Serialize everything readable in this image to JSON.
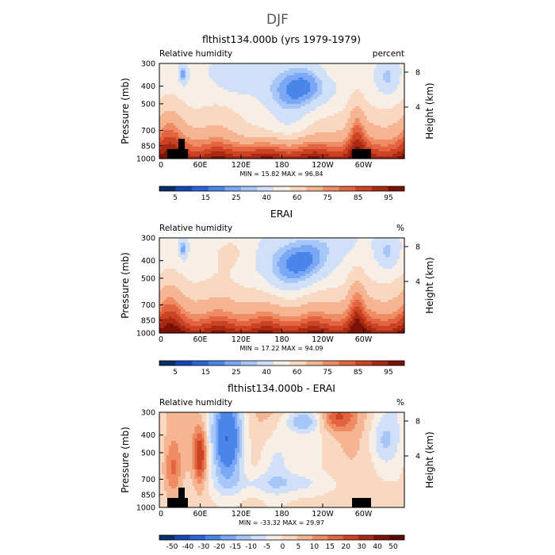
{
  "figure_title": "DJF",
  "chart_data": [
    {
      "type": "heatmap",
      "title": "flthist134.000b (yrs 1979-1979)",
      "left_label": "Relative humidity",
      "right_label": "percent",
      "ylabel": "Pressure (mb)",
      "y2label": "Height (km)",
      "xticks": [
        "0",
        "60E",
        "120E",
        "180",
        "120W",
        "60W"
      ],
      "yticks": [
        "300",
        "400",
        "500",
        "700",
        "850",
        "1000"
      ],
      "y2ticks": [
        "8",
        "4"
      ],
      "stats": "MIN =   15.82   MAX =   96.84",
      "min": 15.82,
      "max": 96.84,
      "colorbar_labels": [
        "5",
        "15",
        "25",
        "40",
        "60",
        "75",
        "85",
        "95"
      ],
      "colors": [
        "#08306b",
        "#1746b8",
        "#2c64d8",
        "#4a85ea",
        "#7aa8f4",
        "#a6c6f7",
        "#cfe0f8",
        "#f7efe6",
        "#f8d8c0",
        "#f5b592",
        "#ef8c63",
        "#e26440",
        "#cc4323",
        "#a92a12",
        "#7a1208"
      ]
    },
    {
      "type": "heatmap",
      "title": "ERAI",
      "left_label": "Relative humidity",
      "right_label": "%",
      "ylabel": "Pressure (mb)",
      "y2label": "Height (km)",
      "xticks": [
        "0",
        "60E",
        "120E",
        "180",
        "120W",
        "60W"
      ],
      "yticks": [
        "300",
        "400",
        "500",
        "700",
        "850",
        "1000"
      ],
      "y2ticks": [
        "8",
        "4"
      ],
      "stats": "MIN =   17.22   MAX =   94.09",
      "min": 17.22,
      "max": 94.09,
      "colorbar_labels": [
        "5",
        "15",
        "25",
        "40",
        "60",
        "75",
        "85",
        "95"
      ],
      "colors": [
        "#08306b",
        "#1746b8",
        "#2c64d8",
        "#4a85ea",
        "#7aa8f4",
        "#a6c6f7",
        "#cfe0f8",
        "#f7efe6",
        "#f8d8c0",
        "#f5b592",
        "#ef8c63",
        "#e26440",
        "#cc4323",
        "#a92a12",
        "#7a1208"
      ]
    },
    {
      "type": "heatmap",
      "title": "flthist134.000b - ERAI",
      "left_label": "Relative humidity",
      "right_label": "%",
      "ylabel": "Pressure (mb)",
      "y2label": "Height (km)",
      "xticks": [
        "0",
        "60E",
        "120E",
        "180",
        "120W",
        "60W"
      ],
      "yticks": [
        "300",
        "400",
        "500",
        "700",
        "850",
        "1000"
      ],
      "y2ticks": [
        "8",
        "4"
      ],
      "stats": "MIN =  -33.32   MAX =   29.97",
      "min": -33.32,
      "max": 29.97,
      "colorbar_labels": [
        "-50",
        "-40",
        "-30",
        "-20",
        "-15",
        "-10",
        "-5",
        "0",
        "5",
        "10",
        "15",
        "20",
        "30",
        "40",
        "50"
      ],
      "colors": [
        "#08306b",
        "#1746b8",
        "#2c64d8",
        "#4a85ea",
        "#7aa8f4",
        "#a6c6f7",
        "#cfe0f8",
        "#f7efe6",
        "#f8d8c0",
        "#f5b592",
        "#ef8c63",
        "#e26440",
        "#cc4323",
        "#a92a12",
        "#7a1208",
        "#5a0a04"
      ]
    }
  ]
}
